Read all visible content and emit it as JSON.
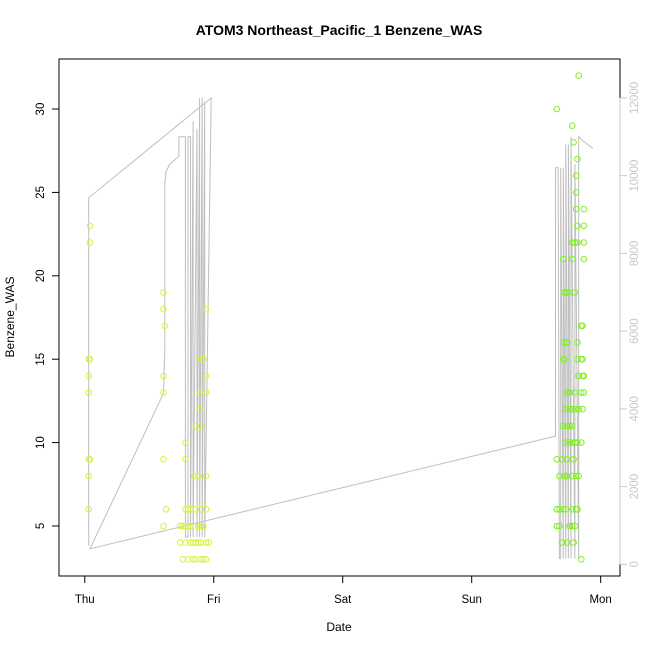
{
  "chart_data": {
    "type": "scatter",
    "title": "ATOM3 Northeast_Pacific_1 Benzene_WAS",
    "xlabel": "Date",
    "ylabel": "Benzene_WAS",
    "x_ticks": [
      "Thu",
      "Fri",
      "Sat",
      "Sun",
      "Mon"
    ],
    "xlim": [
      -0.2,
      4.15
    ],
    "ylim": [
      2,
      33
    ],
    "y_ticks": [
      5,
      10,
      15,
      20,
      25,
      30
    ],
    "y2lim": [
      -300,
      13000
    ],
    "y2_ticks": [
      0,
      2000,
      4000,
      6000,
      8000,
      10000,
      12000
    ],
    "grid": false,
    "colors": {
      "points_low": "#d8f23c",
      "points_high": "#80f020",
      "line": "#bebebe",
      "right_axis": "#c8c8c8"
    },
    "series": [
      {
        "type": "scatter",
        "axis": "left",
        "points": [
          [
            0.03,
            15
          ],
          [
            0.03,
            14
          ],
          [
            0.03,
            13
          ],
          [
            0.03,
            9
          ],
          [
            0.03,
            8
          ],
          [
            0.03,
            6
          ],
          [
            0.04,
            23
          ],
          [
            0.04,
            22
          ],
          [
            0.04,
            15
          ],
          [
            0.04,
            9
          ],
          [
            0.61,
            19
          ],
          [
            0.61,
            18
          ],
          [
            0.61,
            14
          ],
          [
            0.61,
            13
          ],
          [
            0.61,
            9
          ],
          [
            0.61,
            5
          ],
          [
            0.62,
            17
          ],
          [
            0.63,
            6
          ],
          [
            0.74,
            5
          ],
          [
            0.74,
            4
          ],
          [
            0.76,
            5
          ],
          [
            0.76,
            3
          ],
          [
            0.78,
            10
          ],
          [
            0.78,
            9
          ],
          [
            0.78,
            6
          ],
          [
            0.78,
            5
          ],
          [
            0.78,
            4
          ],
          [
            0.8,
            6
          ],
          [
            0.8,
            5
          ],
          [
            0.8,
            3
          ],
          [
            0.82,
            6
          ],
          [
            0.82,
            5
          ],
          [
            0.82,
            4
          ],
          [
            0.84,
            4
          ],
          [
            0.84,
            3
          ],
          [
            0.85,
            8
          ],
          [
            0.86,
            11
          ],
          [
            0.86,
            6
          ],
          [
            0.86,
            4
          ],
          [
            0.86,
            3
          ],
          [
            0.88,
            8
          ],
          [
            0.88,
            5
          ],
          [
            0.88,
            4
          ],
          [
            0.89,
            13
          ],
          [
            0.89,
            12
          ],
          [
            0.9,
            15
          ],
          [
            0.9,
            11
          ],
          [
            0.9,
            6
          ],
          [
            0.9,
            5
          ],
          [
            0.9,
            4
          ],
          [
            0.9,
            3
          ],
          [
            0.92,
            15
          ],
          [
            0.92,
            5
          ],
          [
            0.92,
            3
          ],
          [
            0.94,
            18
          ],
          [
            0.94,
            14
          ],
          [
            0.94,
            13
          ],
          [
            0.94,
            8
          ],
          [
            0.94,
            6
          ],
          [
            0.94,
            4
          ],
          [
            0.94,
            3
          ],
          [
            0.96,
            4
          ],
          [
            3.66,
            30
          ],
          [
            3.66,
            9
          ],
          [
            3.66,
            6
          ],
          [
            3.66,
            5
          ],
          [
            3.68,
            8
          ],
          [
            3.68,
            6
          ],
          [
            3.68,
            5
          ],
          [
            3.7,
            9
          ],
          [
            3.7,
            4
          ],
          [
            3.71,
            21
          ],
          [
            3.71,
            15
          ],
          [
            3.71,
            11
          ],
          [
            3.71,
            6
          ],
          [
            3.72,
            19
          ],
          [
            3.72,
            16
          ],
          [
            3.72,
            15
          ],
          [
            3.72,
            8
          ],
          [
            3.73,
            12
          ],
          [
            3.73,
            10
          ],
          [
            3.73,
            6
          ],
          [
            3.74,
            19
          ],
          [
            3.74,
            16
          ],
          [
            3.74,
            13
          ],
          [
            3.74,
            11
          ],
          [
            3.74,
            9
          ],
          [
            3.74,
            8
          ],
          [
            3.74,
            4
          ],
          [
            3.76,
            19
          ],
          [
            3.76,
            13
          ],
          [
            3.76,
            12
          ],
          [
            3.76,
            11
          ],
          [
            3.76,
            10
          ],
          [
            3.76,
            5
          ],
          [
            3.78,
            29
          ],
          [
            3.78,
            22
          ],
          [
            3.78,
            21
          ],
          [
            3.78,
            12
          ],
          [
            3.78,
            11
          ],
          [
            3.78,
            10
          ],
          [
            3.78,
            8
          ],
          [
            3.78,
            6
          ],
          [
            3.78,
            5
          ],
          [
            3.79,
            28
          ],
          [
            3.79,
            9
          ],
          [
            3.79,
            4
          ],
          [
            3.8,
            22
          ],
          [
            3.8,
            19
          ],
          [
            3.8,
            13
          ],
          [
            3.8,
            10
          ],
          [
            3.8,
            5
          ],
          [
            3.81,
            26
          ],
          [
            3.81,
            25
          ],
          [
            3.81,
            24
          ],
          [
            3.81,
            12
          ],
          [
            3.81,
            8
          ],
          [
            3.81,
            6
          ],
          [
            3.82,
            27
          ],
          [
            3.82,
            23
          ],
          [
            3.82,
            22
          ],
          [
            3.82,
            16
          ],
          [
            3.82,
            15
          ],
          [
            3.82,
            10
          ],
          [
            3.82,
            6
          ],
          [
            3.83,
            32
          ],
          [
            3.83,
            14
          ],
          [
            3.83,
            12
          ],
          [
            3.83,
            8
          ],
          [
            3.85,
            17
          ],
          [
            3.85,
            15
          ],
          [
            3.85,
            13
          ],
          [
            3.85,
            10
          ],
          [
            3.86,
            17
          ],
          [
            3.86,
            15
          ],
          [
            3.86,
            14
          ],
          [
            3.86,
            12
          ],
          [
            3.87,
            24
          ],
          [
            3.87,
            23
          ],
          [
            3.87,
            22
          ],
          [
            3.87,
            21
          ],
          [
            3.87,
            14
          ],
          [
            3.87,
            13
          ],
          [
            3.85,
            3
          ]
        ]
      },
      {
        "type": "line",
        "axis": "right",
        "points": [
          [
            0.03,
            480
          ],
          [
            0.03,
            9430
          ],
          [
            0.98,
            12000
          ],
          [
            0.93,
            700
          ],
          [
            0.93,
            11900
          ],
          [
            0.91,
            700
          ],
          [
            0.91,
            12000
          ],
          [
            0.89,
            700
          ],
          [
            0.89,
            12000
          ],
          [
            0.87,
            700
          ],
          [
            0.87,
            11200
          ],
          [
            0.84,
            700
          ],
          [
            0.84,
            11400
          ],
          [
            0.82,
            700
          ],
          [
            0.82,
            11000
          ],
          [
            0.8,
            11000
          ],
          [
            0.8,
            700
          ],
          [
            0.78,
            700
          ],
          [
            0.78,
            11000
          ],
          [
            0.73,
            11000
          ],
          [
            0.73,
            10500
          ],
          [
            0.66,
            10300
          ],
          [
            0.63,
            10100
          ],
          [
            0.62,
            9800
          ],
          [
            0.62,
            5500
          ],
          [
            0.61,
            4400
          ],
          [
            0.04,
            400
          ],
          [
            3.65,
            3300
          ],
          [
            3.65,
            10200
          ],
          [
            3.67,
            10200
          ],
          [
            3.68,
            150
          ],
          [
            3.69,
            150
          ],
          [
            3.69,
            10200
          ],
          [
            3.71,
            150
          ],
          [
            3.71,
            10200
          ],
          [
            3.73,
            150
          ],
          [
            3.73,
            10800
          ],
          [
            3.75,
            150
          ],
          [
            3.75,
            10800
          ],
          [
            3.77,
            150
          ],
          [
            3.77,
            11000
          ],
          [
            3.8,
            150
          ],
          [
            3.8,
            10300
          ],
          [
            3.83,
            150
          ],
          [
            3.83,
            11000
          ],
          [
            3.86,
            10900
          ],
          [
            3.94,
            10700
          ]
        ]
      }
    ]
  }
}
